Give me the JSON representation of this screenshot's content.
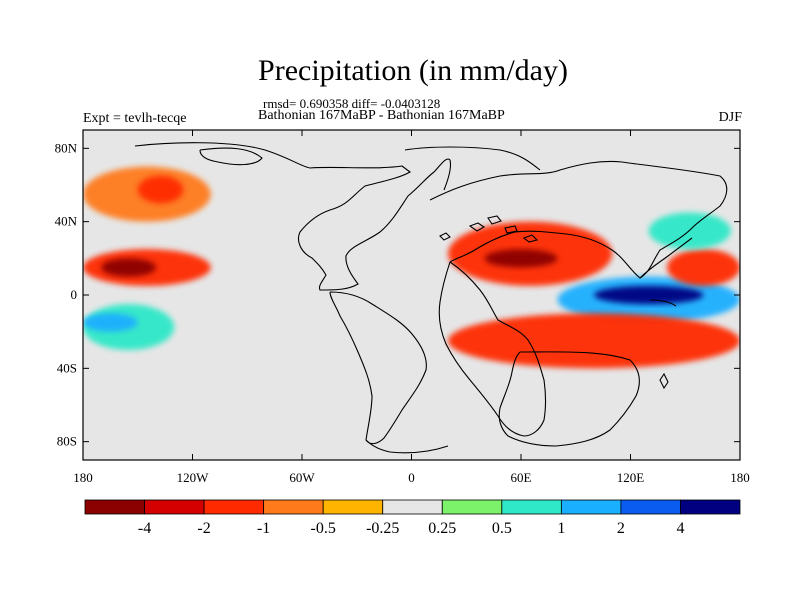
{
  "title": "Precipitation (in mm/day)",
  "stats_line": "rmsd= 0.690358 diff= -0.0403128",
  "experiment_label": "Expt = tevlh-tecqe",
  "subtitle": "Bathonian 167MaBP - Bathonian 167MaBP",
  "season": "DJF",
  "map": {
    "projection": "cylindrical equidistant",
    "lon_range": [
      -180,
      180
    ],
    "lat_range": [
      -90,
      90
    ],
    "x_ticks": [
      {
        "value": -180,
        "label": "180"
      },
      {
        "value": -120,
        "label": "120W"
      },
      {
        "value": -60,
        "label": "60W"
      },
      {
        "value": 0,
        "label": "0"
      },
      {
        "value": 60,
        "label": "60E"
      },
      {
        "value": 120,
        "label": "120E"
      },
      {
        "value": 180,
        "label": "180"
      }
    ],
    "y_ticks": [
      {
        "value": 80,
        "label": "80N"
      },
      {
        "value": 40,
        "label": "40N"
      },
      {
        "value": 0,
        "label": "0"
      },
      {
        "value": -40,
        "label": "40S"
      },
      {
        "value": -80,
        "label": "80S"
      }
    ],
    "background_color": "#e6e6e6"
  },
  "colorbar": {
    "colors": [
      "#8b0000",
      "#d40000",
      "#ff2a00",
      "#ff7a1a",
      "#ffb400",
      "#e6e6e6",
      "#7cf26a",
      "#2ee8c8",
      "#1aafff",
      "#0a5cf0",
      "#000080"
    ],
    "labels": [
      "-4",
      "-2",
      "-1",
      "-0.5",
      "-0.25",
      "0.25",
      "0.5",
      "1",
      "2",
      "4"
    ]
  },
  "chart_data": {
    "type": "heatmap",
    "title": "Precipitation (in mm/day)",
    "units": "mm/day",
    "levels": [
      -4,
      -2,
      -1,
      -0.5,
      -0.25,
      0.25,
      0.5,
      1,
      2,
      4
    ],
    "regions": [
      {
        "name": "north-pacific-dry-band",
        "lon": [
          -180,
          -110
        ],
        "lat": [
          40,
          70
        ],
        "level": -1,
        "color_index": 3
      },
      {
        "name": "north-pacific-core",
        "lon": [
          -150,
          -125
        ],
        "lat": [
          50,
          65
        ],
        "level": -2,
        "color_index": 2
      },
      {
        "name": "tropical-pacific-dry-band",
        "lon": [
          -180,
          -110
        ],
        "lat": [
          5,
          25
        ],
        "level": -2,
        "color_index": 2
      },
      {
        "name": "tropical-pacific-core",
        "lon": [
          -170,
          -140
        ],
        "lat": [
          10,
          20
        ],
        "level": -4,
        "color_index": 0
      },
      {
        "name": "south-pacific-wet-band",
        "lon": [
          -180,
          -130
        ],
        "lat": [
          -30,
          -5
        ],
        "level": 1,
        "color_index": 7
      },
      {
        "name": "south-pacific-core",
        "lon": [
          -180,
          -150
        ],
        "lat": [
          -20,
          -10
        ],
        "level": 2,
        "color_index": 8
      },
      {
        "name": "tethys-dry-band",
        "lon": [
          20,
          110
        ],
        "lat": [
          5,
          40
        ],
        "level": -2,
        "color_index": 2
      },
      {
        "name": "tethys-core",
        "lon": [
          40,
          80
        ],
        "lat": [
          15,
          25
        ],
        "level": -4,
        "color_index": 0
      },
      {
        "name": "equatorial-east-wet-band",
        "lon": [
          80,
          180
        ],
        "lat": [
          -15,
          10
        ],
        "level": 2,
        "color_index": 8
      },
      {
        "name": "equatorial-east-core",
        "lon": [
          100,
          160
        ],
        "lat": [
          -5,
          5
        ],
        "level": 4,
        "color_index": 10
      },
      {
        "name": "southern-dry-band",
        "lon": [
          20,
          180
        ],
        "lat": [
          -40,
          -10
        ],
        "level": -2,
        "color_index": 2
      },
      {
        "name": "eastern-tropical-dry",
        "lon": [
          140,
          180
        ],
        "lat": [
          5,
          25
        ],
        "level": -2,
        "color_index": 2
      },
      {
        "name": "northeast-wet-patch",
        "lon": [
          130,
          175
        ],
        "lat": [
          25,
          45
        ],
        "level": 1,
        "color_index": 7
      }
    ]
  }
}
